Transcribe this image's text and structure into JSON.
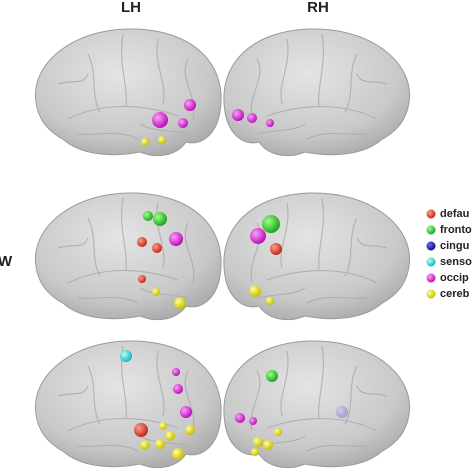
{
  "header": {
    "left": "LH",
    "right": "RH",
    "row_label": "W"
  },
  "legend": {
    "items": [
      "defau",
      "fronto",
      "cingu",
      "senso",
      "occip",
      "cereb"
    ]
  }
}
